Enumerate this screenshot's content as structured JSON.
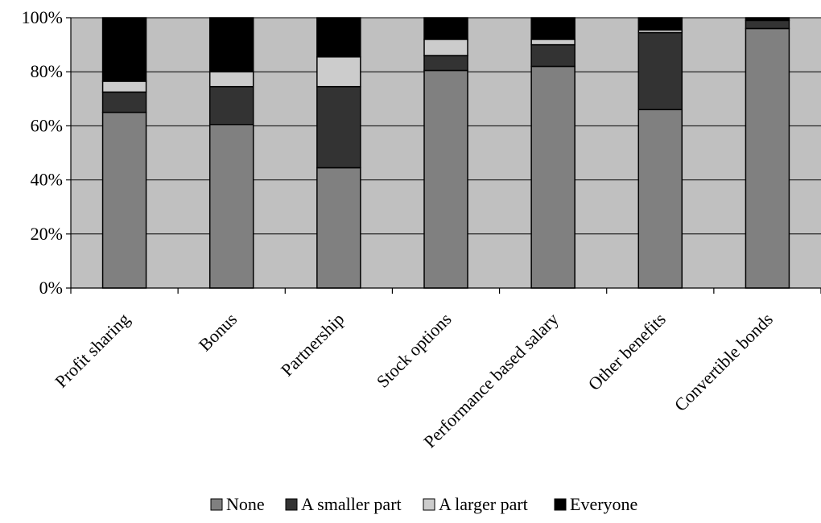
{
  "chart_data": {
    "type": "bar",
    "stacked": true,
    "normalized": true,
    "categories": [
      "Profit sharing",
      "Bonus",
      "Partnership",
      "Stock options",
      "Performance based salary",
      "Other benefits",
      "Convertible bonds"
    ],
    "series": [
      {
        "name": "None",
        "color": "#808080",
        "values": [
          65,
          60.5,
          44.5,
          80.5,
          82,
          66,
          96
        ]
      },
      {
        "name": "A smaller part",
        "color": "#333333",
        "values": [
          7.5,
          14,
          30,
          5.5,
          8,
          28.5,
          3
        ]
      },
      {
        "name": "A larger part",
        "color": "#cccccc",
        "values": [
          4,
          5.5,
          11,
          6,
          2,
          1,
          0
        ]
      },
      {
        "name": "Everyone",
        "color": "#000000",
        "values": [
          23.5,
          20,
          14.5,
          8,
          8,
          4.5,
          1
        ]
      }
    ],
    "y_ticks": [
      "0%",
      "20%",
      "40%",
      "60%",
      "80%",
      "100%"
    ],
    "ylim": [
      0,
      100
    ],
    "grid": true,
    "plot_background": "#c0c0c0",
    "legend_position": "bottom",
    "title": "",
    "xlabel": "",
    "ylabel": ""
  }
}
